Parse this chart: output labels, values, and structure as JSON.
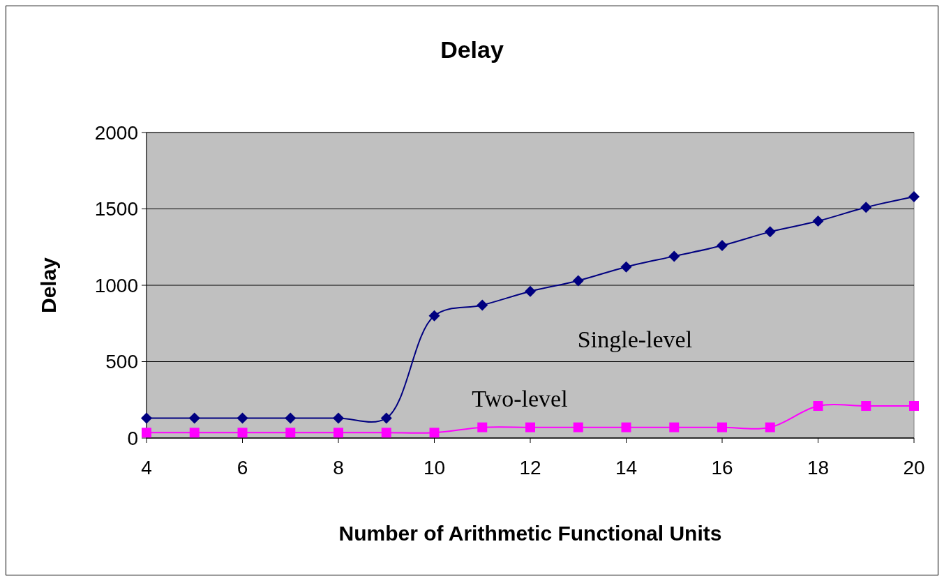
{
  "chart_data": {
    "type": "line",
    "title": "Delay",
    "xlabel": "Number of Arithmetic Functional Units",
    "ylabel": "Delay",
    "x": [
      4,
      5,
      6,
      7,
      8,
      9,
      10,
      11,
      12,
      13,
      14,
      15,
      16,
      17,
      18,
      19,
      20
    ],
    "series": [
      {
        "name": "Single-level",
        "color": "#000080",
        "marker": "diamond",
        "values": [
          130,
          130,
          130,
          130,
          130,
          130,
          800,
          870,
          960,
          1030,
          1120,
          1190,
          1260,
          1350,
          1420,
          1510,
          1580
        ]
      },
      {
        "name": "Two-level",
        "color": "#ff00ff",
        "marker": "square",
        "values": [
          35,
          35,
          35,
          35,
          35,
          35,
          35,
          70,
          70,
          70,
          70,
          70,
          70,
          70,
          210,
          210,
          210
        ]
      }
    ],
    "xlim": [
      4,
      20
    ],
    "xticks": [
      4,
      6,
      8,
      10,
      12,
      14,
      16,
      18,
      20
    ],
    "ylim": [
      0,
      2000
    ],
    "yticks": [
      0,
      500,
      1000,
      1500,
      2000
    ],
    "grid": "y"
  }
}
